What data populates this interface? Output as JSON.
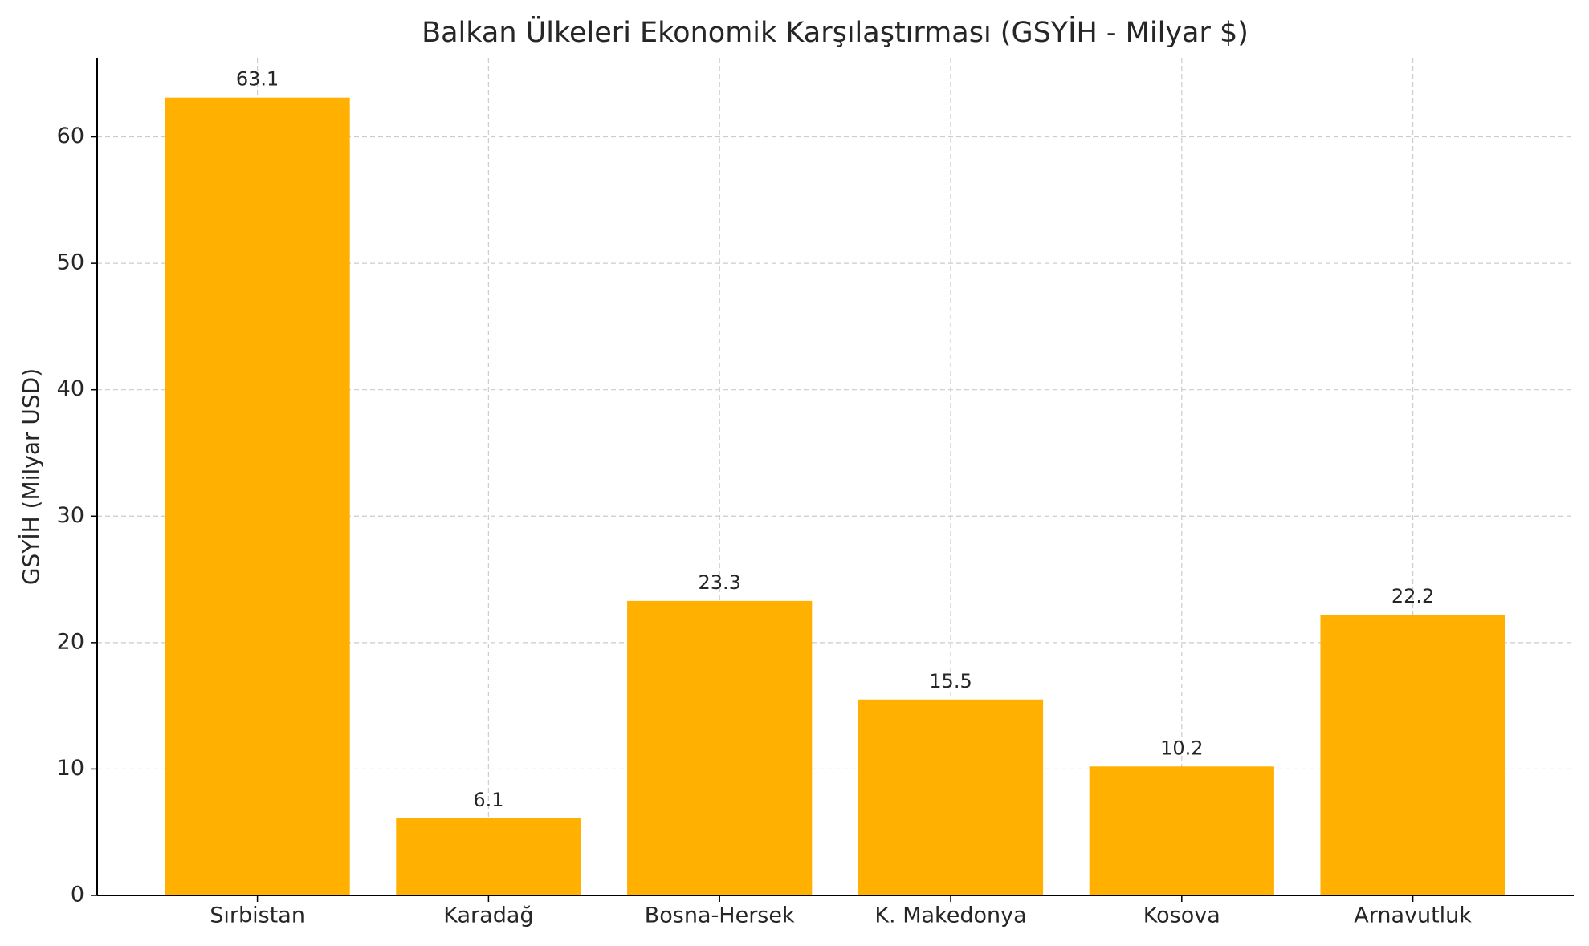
{
  "chart_data": {
    "type": "bar",
    "title": "Balkan Ülkeleri Ekonomik Karşılaştırması (GSYİH - Milyar $)",
    "y_label": "GSYİH (Milyar USD)",
    "categories": [
      "Sırbistan",
      "Karadağ",
      "Bosna-Hersek",
      "K. Makedonya",
      "Kosova",
      "Arnavutluk"
    ],
    "values": [
      63.1,
      6.1,
      23.3,
      15.5,
      10.2,
      22.2
    ],
    "color": "#ffb000",
    "ylim": [
      0,
      66.255
    ],
    "yticks": [
      0,
      10,
      20,
      30,
      40,
      50,
      60
    ],
    "grid": true
  }
}
